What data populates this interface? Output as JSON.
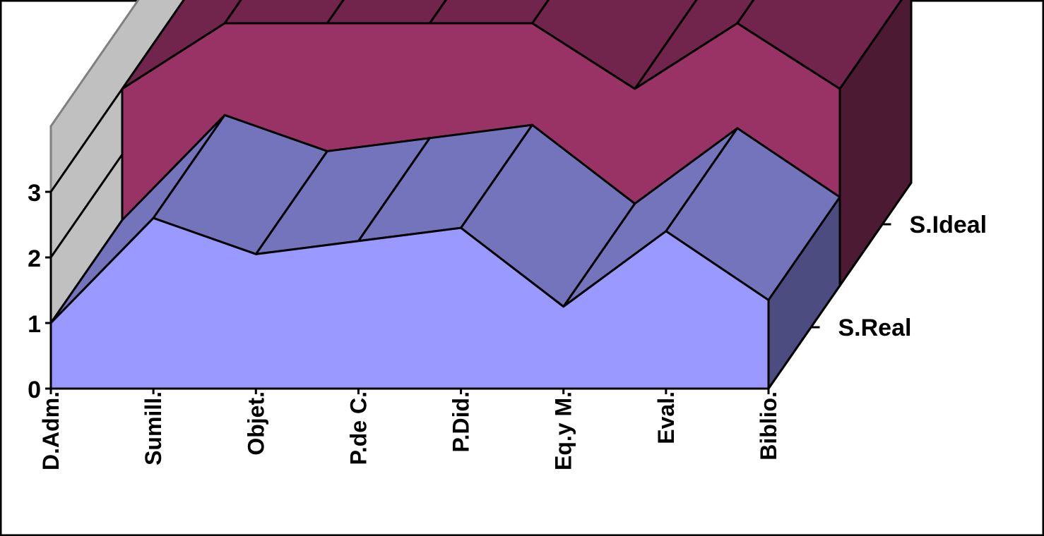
{
  "chart_data": {
    "type": "area",
    "categories": [
      "D.Adm.",
      "Sumill.",
      "Objet.",
      "P.de C.",
      "P.Did.",
      "Eq.y M.",
      "Eval.",
      "Biblio."
    ],
    "series": [
      {
        "name": "S.Real",
        "values": [
          1.0,
          2.6,
          2.05,
          2.25,
          2.45,
          1.25,
          2.4,
          1.35
        ]
      },
      {
        "name": "S.Ideal",
        "values": [
          3.0,
          4.0,
          4.0,
          4.0,
          4.0,
          3.0,
          4.0,
          3.0
        ]
      }
    ],
    "yticks": [
      "0",
      "1",
      "2",
      "3"
    ],
    "ylim": [
      0,
      4
    ],
    "grid": true,
    "legend": "none",
    "colors": {
      "front_top": "#7474bd",
      "front_side": "#9999ff",
      "front_end": "#4c4c80",
      "back_top": "#72254c",
      "back_side": "#993366",
      "back_end": "#4d1a33",
      "walls": "#c0c0c0"
    }
  }
}
